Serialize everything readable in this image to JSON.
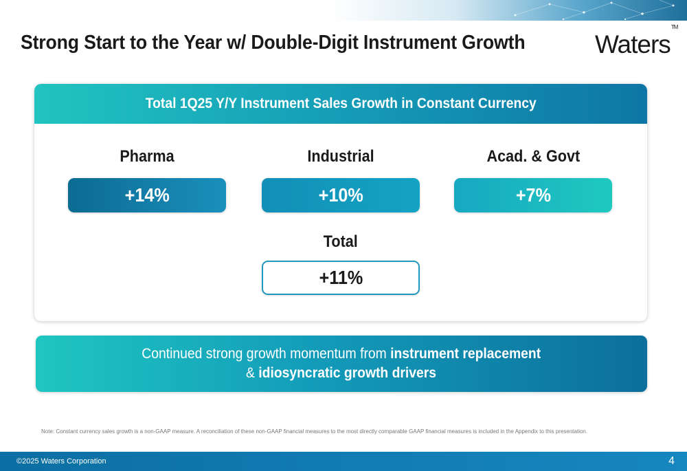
{
  "title": "Strong Start to the Year w/ Double-Digit Instrument Growth",
  "logo": {
    "text": "Waters",
    "tm": "TM"
  },
  "card": {
    "header": "Total 1Q25 Y/Y Instrument Sales Growth in Constant Currency",
    "segments": [
      {
        "label": "Pharma",
        "value": "+14%"
      },
      {
        "label": "Industrial",
        "value": "+10%"
      },
      {
        "label": "Acad. & Govt",
        "value": "+7%"
      }
    ],
    "total": {
      "label": "Total",
      "value": "+11%"
    }
  },
  "callout": {
    "line1_regular": "Continued strong growth momentum from ",
    "line1_bold": "instrument replacement",
    "line2_regular": "& ",
    "line2_bold": "idiosyncratic growth drivers"
  },
  "note": "Note: Constant currency sales growth is a non-GAAP measure. A reconciliation of these non-GAAP financial measures to the most directly comparable GAAP financial measures is included in the Appendix to this presentation.",
  "footer": {
    "copyright": "©2025 Waters Corporation",
    "page_number": "4"
  },
  "colors": {
    "teal": "#1fc6c1",
    "blue": "#0c6f9c",
    "footer_blue": "#0c6fa3"
  }
}
